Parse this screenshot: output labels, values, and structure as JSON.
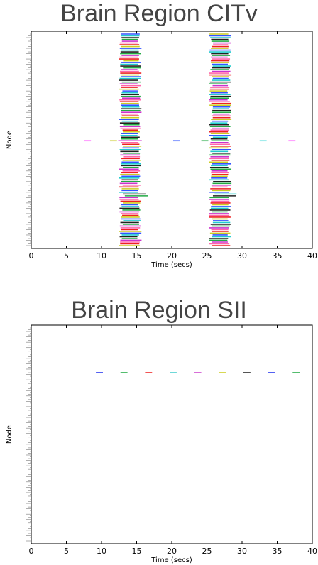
{
  "chart_data": [
    {
      "type": "scatter",
      "title": "Brain Region CITv",
      "xlabel": "Time (secs)",
      "ylabel": "Node",
      "xlim": [
        0,
        40
      ],
      "xticks": [
        0,
        5,
        10,
        15,
        20,
        25,
        30,
        35,
        40
      ],
      "node_count": 120,
      "grid": false,
      "legend": "none",
      "bursts": [
        {
          "start": 12.8,
          "end": 15.4
        },
        {
          "start": 25.6,
          "end": 28.2
        }
      ],
      "isolated_spikes": [
        {
          "node_index": 60,
          "start": 7.5,
          "end": 8.5,
          "color": "#ff55ff"
        },
        {
          "node_index": 60,
          "start": 11.2,
          "end": 12.2,
          "color": "#cccc33"
        },
        {
          "node_index": 60,
          "start": 20.2,
          "end": 21.2,
          "color": "#3355ff"
        },
        {
          "node_index": 60,
          "start": 24.2,
          "end": 25.2,
          "color": "#22aa44"
        },
        {
          "node_index": 60,
          "start": 32.5,
          "end": 33.5,
          "color": "#55dddd"
        },
        {
          "node_index": 60,
          "start": 36.6,
          "end": 37.6,
          "color": "#ff55ff"
        }
      ]
    },
    {
      "type": "scatter",
      "title": "Brain Region SII",
      "xlabel": "Time (secs)",
      "ylabel": "Node",
      "xlim": [
        0,
        40
      ],
      "xticks": [
        0,
        5,
        10,
        15,
        20,
        25,
        30,
        35,
        40
      ],
      "node_count": 120,
      "grid": false,
      "legend": "none",
      "spikes": [
        {
          "node_index": 25,
          "time": 9.7,
          "color": "#2233ee"
        },
        {
          "node_index": 25,
          "time": 13.2,
          "color": "#22aa44"
        },
        {
          "node_index": 25,
          "time": 16.7,
          "color": "#ee2222"
        },
        {
          "node_index": 25,
          "time": 20.2,
          "color": "#44cccc"
        },
        {
          "node_index": 25,
          "time": 23.7,
          "color": "#cc44cc"
        },
        {
          "node_index": 25,
          "time": 27.2,
          "color": "#cccc22"
        },
        {
          "node_index": 25,
          "time": 30.7,
          "color": "#222222"
        },
        {
          "node_index": 25,
          "time": 34.2,
          "color": "#2233ee"
        },
        {
          "node_index": 25,
          "time": 37.7,
          "color": "#22aa44"
        }
      ]
    }
  ],
  "palette": [
    "#3355ff",
    "#22aa44",
    "#ee2222",
    "#22cccc",
    "#cc33cc",
    "#cccc22",
    "#222222",
    "#ff66aa"
  ]
}
